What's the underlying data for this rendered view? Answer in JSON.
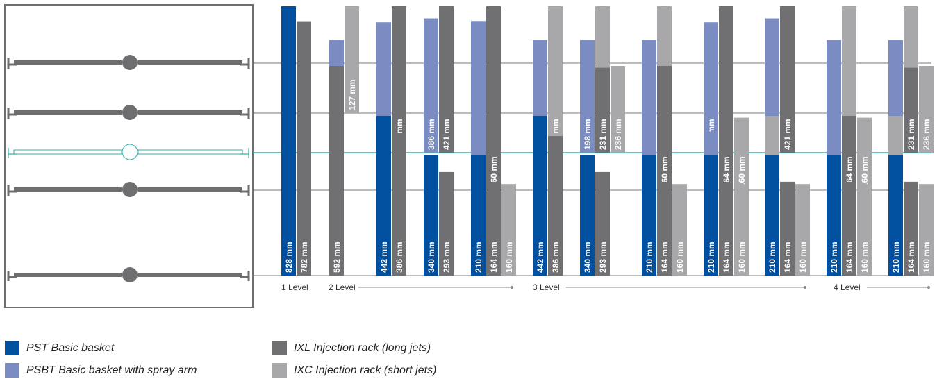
{
  "colors": {
    "PST": "#014f9f",
    "PSBT": "#7a8cc2",
    "IXL": "#707073",
    "IXC": "#a8a8aa",
    "shelf": "#6e6e70",
    "highlight": "#29b3a4",
    "frame": "#6e6e70",
    "grid": "#7a7a7a"
  },
  "levels": [
    {
      "label": "1 Level"
    },
    {
      "label": "2 Level"
    },
    {
      "label": "3 Level"
    },
    {
      "label": "4 Level"
    }
  ],
  "legend": [
    {
      "key": "PST",
      "label": "PST Basic basket"
    },
    {
      "key": "PSBT",
      "label": "PSBT Basic basket with spray arm"
    },
    {
      "key": "IXL",
      "label": "IXL Injection rack (long jets)"
    },
    {
      "key": "IXC",
      "label": "IXC Injection rack (short jets)"
    }
  ],
  "chart_data": {
    "type": "bar",
    "unit": "mm",
    "shelves": 5,
    "highlighted_shelf": 3,
    "groups": [
      {
        "bars": [
          {
            "type": "PST",
            "value": 828,
            "label": "828 mm",
            "top": 0,
            "base": 4
          },
          {
            "type": "IXL",
            "value": 782,
            "label": "782 mm",
            "top": 0,
            "base": 4
          }
        ]
      },
      {
        "bars": [
          {
            "type": "PSBT",
            "value": 87,
            "label": "87",
            "top": 0,
            "base": 1
          },
          {
            "type": "IXC",
            "value": 127,
            "label": "127 mm",
            "top": 0,
            "base": 1
          },
          {
            "type": "IXL",
            "value": 592,
            "label": "592 mm",
            "top": 1,
            "base": 4
          }
        ]
      },
      {
        "bars": [
          {
            "type": "PSBT",
            "value": 283,
            "label": "283 mm",
            "top": 0,
            "base": 2
          },
          {
            "type": "IXL",
            "value": 318,
            "label": "318 mm",
            "top": 0,
            "base": 2
          },
          {
            "type": "PST",
            "value": 442,
            "label": "442 mm",
            "top": 2,
            "base": 4
          },
          {
            "type": "IXL",
            "value": 386,
            "label": "386 mm",
            "top": 2,
            "base": 4
          }
        ]
      },
      {
        "bars": [
          {
            "type": "PSBT",
            "value": 386,
            "label": "386 mm",
            "top": 0,
            "base": 2
          },
          {
            "type": "IXL",
            "value": 421,
            "label": "421 mm",
            "top": 0,
            "base": 2
          },
          {
            "type": "PST",
            "value": 340,
            "label": "340 mm",
            "top": 3,
            "base": 4
          },
          {
            "type": "IXL",
            "value": 293,
            "label": "293 mm",
            "top": 3,
            "base": 4
          }
        ]
      },
      {
        "bars": [
          {
            "type": "PSBT",
            "value": 515,
            "label": "515 mm",
            "top": 0,
            "base": 3
          },
          {
            "type": "IXL",
            "value": 560,
            "label": "560 mm",
            "top": 0,
            "base": 3
          },
          {
            "type": "PST",
            "value": 210,
            "label": "210 mm",
            "top": 3,
            "base": 4
          },
          {
            "type": "IXL",
            "value": 164,
            "label": "164 mm",
            "top": 3,
            "base": 4
          },
          {
            "type": "IXC",
            "value": 160,
            "label": "160 mm",
            "top": 3,
            "base": 4
          }
        ]
      },
      {
        "bars": [
          {
            "type": "PSBT",
            "value": 87,
            "label": "87",
            "top": 0,
            "base": 1
          },
          {
            "type": "IXC",
            "value": 127,
            "label": "127 mm",
            "top": 0,
            "base": 1
          },
          {
            "type": "PSBT",
            "value": 93,
            "label": "93",
            "top": 1,
            "base": 2
          },
          {
            "type": "IXC",
            "value": 133,
            "label": "133 mm",
            "top": 1,
            "base": 2
          },
          {
            "type": "PST",
            "value": 442,
            "label": "442 mm",
            "top": 2,
            "base": 4
          },
          {
            "type": "IXL",
            "value": 386,
            "label": "386 mm",
            "top": 2,
            "base": 4
          }
        ]
      },
      {
        "bars": [
          {
            "type": "PSBT",
            "value": 87,
            "label": "87",
            "top": 0,
            "base": 1
          },
          {
            "type": "IXC",
            "value": 127,
            "label": "127 mm",
            "top": 0,
            "base": 1
          },
          {
            "type": "PSBT",
            "value": 198,
            "label": "198 mm",
            "top": 1,
            "base": 2
          },
          {
            "type": "IXL",
            "value": 231,
            "label": "231 mm",
            "top": 1,
            "base": 2
          },
          {
            "type": "IXC",
            "value": 236,
            "label": "236 mm",
            "top": 1,
            "base": 2
          },
          {
            "type": "PST",
            "value": 340,
            "label": "340 mm",
            "top": 3,
            "base": 4
          },
          {
            "type": "IXL",
            "value": 293,
            "label": "293 mm",
            "top": 3,
            "base": 4
          }
        ]
      },
      {
        "bars": [
          {
            "type": "PSBT",
            "value": 87,
            "label": "87",
            "top": 0,
            "base": 1
          },
          {
            "type": "IXC",
            "value": 127,
            "label": "127 mm",
            "top": 0,
            "base": 1
          },
          {
            "type": "PSBT",
            "value": 325,
            "label": "325 mm",
            "top": 1,
            "base": 3
          },
          {
            "type": "IXL",
            "value": 360,
            "label": "360 mm",
            "top": 1,
            "base": 3
          },
          {
            "type": "PST",
            "value": 210,
            "label": "210 mm",
            "top": 3,
            "base": 4
          },
          {
            "type": "IXL",
            "value": 164,
            "label": "164 mm",
            "top": 3,
            "base": 4
          },
          {
            "type": "IXC",
            "value": 160,
            "label": "160 mm",
            "top": 3,
            "base": 4
          }
        ]
      },
      {
        "bars": [
          {
            "type": "PSBT",
            "value": 283,
            "label": "283 mm",
            "top": 0,
            "base": 2
          },
          {
            "type": "IXL",
            "value": 318,
            "label": "318 mm",
            "top": 0,
            "base": 2
          },
          {
            "type": "PSBT",
            "value": 129,
            "label": "129",
            "top": 2,
            "base": 3
          },
          {
            "type": "IXL",
            "value": 164,
            "label": "164 mm",
            "top": 2,
            "base": 3
          },
          {
            "type": "IXC",
            "value": 160,
            "label": "160 mm",
            "top": 2,
            "base": 3
          },
          {
            "type": "PST",
            "value": 210,
            "label": "210 mm",
            "top": 3,
            "base": 4
          },
          {
            "type": "IXL",
            "value": 164,
            "label": "164 mm",
            "top": 3,
            "base": 4
          },
          {
            "type": "IXC",
            "value": 160,
            "label": "160 mm",
            "top": 3,
            "base": 4
          }
        ]
      },
      {
        "bars": [
          {
            "type": "PSBT",
            "value": 386,
            "label": "386 mm",
            "top": 0,
            "base": 2
          },
          {
            "type": "IXL",
            "value": 421,
            "label": "421 mm",
            "top": 0,
            "base": 2
          },
          {
            "type": "IXC",
            "value": 66,
            "label": "66",
            "top": 2,
            "base": 3
          },
          {
            "type": "PST",
            "value": 210,
            "label": "210 mm",
            "top": 3,
            "base": 4
          },
          {
            "type": "IXL",
            "value": 164,
            "label": "164 mm",
            "top": 3,
            "base": 4
          },
          {
            "type": "IXC",
            "value": 160,
            "label": "160 mm",
            "top": 3,
            "base": 4
          }
        ]
      },
      {
        "bars": [
          {
            "type": "PSBT",
            "value": 87,
            "label": "87",
            "top": 0,
            "base": 1
          },
          {
            "type": "IXC",
            "value": 127,
            "label": "127 mm",
            "top": 0,
            "base": 1
          },
          {
            "type": "PSBT",
            "value": 93,
            "label": "93",
            "top": 1,
            "base": 2
          },
          {
            "type": "IXC",
            "value": 133,
            "label": "133 mm",
            "top": 1,
            "base": 2
          },
          {
            "type": "PSBT",
            "value": 129,
            "label": "129",
            "top": 2,
            "base": 3
          },
          {
            "type": "IXL",
            "value": 164,
            "label": "164 mm",
            "top": 2,
            "base": 3
          },
          {
            "type": "IXC",
            "value": 160,
            "label": "160 mm",
            "top": 2,
            "base": 3
          },
          {
            "type": "PST",
            "value": 210,
            "label": "210 mm",
            "top": 3,
            "base": 4
          },
          {
            "type": "IXL",
            "value": 164,
            "label": "164 mm",
            "top": 3,
            "base": 4
          },
          {
            "type": "IXC",
            "value": 160,
            "label": "160 mm",
            "top": 3,
            "base": 4
          }
        ]
      },
      {
        "bars": [
          {
            "type": "PSBT",
            "value": 87,
            "label": "87",
            "top": 0,
            "base": 1
          },
          {
            "type": "IXC",
            "value": 127,
            "label": "127 mm",
            "top": 0,
            "base": 1
          },
          {
            "type": "PSBT",
            "value": 198,
            "label": "198 mm",
            "top": 1,
            "base": 2
          },
          {
            "type": "IXL",
            "value": 231,
            "label": "231 mm",
            "top": 1,
            "base": 2
          },
          {
            "type": "IXC",
            "value": 236,
            "label": "236 mm",
            "top": 1,
            "base": 2
          },
          {
            "type": "IXC",
            "value": 66,
            "label": "66",
            "top": 2,
            "base": 3
          },
          {
            "type": "PST",
            "value": 210,
            "label": "210 mm",
            "top": 3,
            "base": 4
          },
          {
            "type": "IXL",
            "value": 164,
            "label": "164 mm",
            "top": 3,
            "base": 4
          },
          {
            "type": "IXC",
            "value": 160,
            "label": "160 mm",
            "top": 3,
            "base": 4
          }
        ]
      }
    ]
  }
}
